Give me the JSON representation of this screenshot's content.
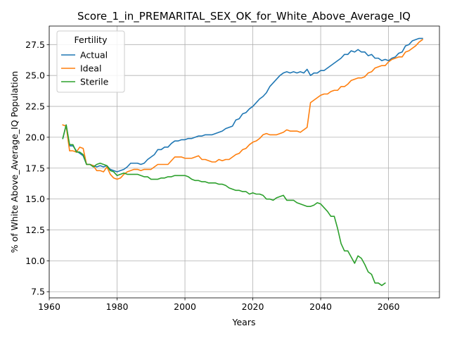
{
  "chart_data": {
    "type": "line",
    "title": "Score_1_in_PREMARITAL_SEX_OK_for_White_Above_Average_IQ",
    "xlabel": "Years",
    "ylabel": "% of White Above_Average_IQ Population",
    "xlim": [
      1960,
      2075
    ],
    "ylim": [
      7.0,
      29.0
    ],
    "xticks": [
      1960,
      1980,
      2000,
      2020,
      2040,
      2060
    ],
    "yticks": [
      7.5,
      10.0,
      12.5,
      15.0,
      17.5,
      20.0,
      22.5,
      25.0,
      27.5
    ],
    "grid": true,
    "legend": {
      "title": "Fertility",
      "position": "top-left"
    },
    "series": [
      {
        "name": "Actual",
        "color": "#1f77b4",
        "points": [
          [
            1964,
            19.9
          ],
          [
            1965,
            21.0
          ],
          [
            1966,
            19.3
          ],
          [
            1967,
            19.3
          ],
          [
            1968,
            18.9
          ],
          [
            1969,
            18.7
          ],
          [
            1970,
            18.5
          ],
          [
            1971,
            17.8
          ],
          [
            1972,
            17.8
          ],
          [
            1973,
            17.7
          ],
          [
            1974,
            17.6
          ],
          [
            1975,
            17.7
          ],
          [
            1976,
            17.6
          ],
          [
            1977,
            17.7
          ],
          [
            1978,
            17.4
          ],
          [
            1979,
            17.3
          ],
          [
            1980,
            17.2
          ],
          [
            1981,
            17.3
          ],
          [
            1982,
            17.4
          ],
          [
            1983,
            17.6
          ],
          [
            1984,
            17.9
          ],
          [
            1985,
            17.9
          ],
          [
            1986,
            17.9
          ],
          [
            1987,
            17.8
          ],
          [
            1988,
            17.9
          ],
          [
            1989,
            18.2
          ],
          [
            1990,
            18.4
          ],
          [
            1991,
            18.6
          ],
          [
            1992,
            19.0
          ],
          [
            1993,
            19.0
          ],
          [
            1994,
            19.2
          ],
          [
            1995,
            19.2
          ],
          [
            1996,
            19.5
          ],
          [
            1997,
            19.7
          ],
          [
            1998,
            19.7
          ],
          [
            1999,
            19.8
          ],
          [
            2000,
            19.8
          ],
          [
            2001,
            19.9
          ],
          [
            2002,
            19.9
          ],
          [
            2003,
            20.0
          ],
          [
            2004,
            20.1
          ],
          [
            2005,
            20.1
          ],
          [
            2006,
            20.2
          ],
          [
            2007,
            20.2
          ],
          [
            2008,
            20.2
          ],
          [
            2009,
            20.3
          ],
          [
            2010,
            20.4
          ],
          [
            2011,
            20.5
          ],
          [
            2012,
            20.7
          ],
          [
            2013,
            20.8
          ],
          [
            2014,
            20.9
          ],
          [
            2015,
            21.4
          ],
          [
            2016,
            21.5
          ],
          [
            2017,
            21.9
          ],
          [
            2018,
            22.0
          ],
          [
            2019,
            22.3
          ],
          [
            2020,
            22.5
          ],
          [
            2021,
            22.8
          ],
          [
            2022,
            23.1
          ],
          [
            2023,
            23.3
          ],
          [
            2024,
            23.6
          ],
          [
            2025,
            24.1
          ],
          [
            2026,
            24.4
          ],
          [
            2027,
            24.7
          ],
          [
            2028,
            25.0
          ],
          [
            2029,
            25.2
          ],
          [
            2030,
            25.3
          ],
          [
            2031,
            25.2
          ],
          [
            2032,
            25.3
          ],
          [
            2033,
            25.2
          ],
          [
            2034,
            25.3
          ],
          [
            2035,
            25.2
          ],
          [
            2036,
            25.5
          ],
          [
            2037,
            25.0
          ],
          [
            2038,
            25.2
          ],
          [
            2039,
            25.2
          ],
          [
            2040,
            25.4
          ],
          [
            2041,
            25.4
          ],
          [
            2042,
            25.6
          ],
          [
            2043,
            25.8
          ],
          [
            2044,
            26.0
          ],
          [
            2045,
            26.2
          ],
          [
            2046,
            26.4
          ],
          [
            2047,
            26.7
          ],
          [
            2048,
            26.7
          ],
          [
            2049,
            27.0
          ],
          [
            2050,
            26.9
          ],
          [
            2051,
            27.1
          ],
          [
            2052,
            26.9
          ],
          [
            2053,
            26.9
          ],
          [
            2054,
            26.6
          ],
          [
            2055,
            26.7
          ],
          [
            2056,
            26.4
          ],
          [
            2057,
            26.4
          ],
          [
            2058,
            26.2
          ],
          [
            2059,
            26.3
          ],
          [
            2060,
            26.2
          ],
          [
            2061,
            26.4
          ],
          [
            2062,
            26.5
          ],
          [
            2063,
            26.8
          ],
          [
            2064,
            26.9
          ],
          [
            2065,
            27.4
          ],
          [
            2066,
            27.5
          ],
          [
            2067,
            27.8
          ],
          [
            2068,
            27.9
          ],
          [
            2069,
            28.0
          ],
          [
            2070,
            28.0
          ]
        ]
      },
      {
        "name": "Ideal",
        "color": "#ff7f0e",
        "points": [
          [
            1964,
            21.0
          ],
          [
            1965,
            20.9
          ],
          [
            1966,
            18.9
          ],
          [
            1967,
            18.9
          ],
          [
            1968,
            18.8
          ],
          [
            1969,
            19.2
          ],
          [
            1970,
            19.1
          ],
          [
            1971,
            17.8
          ],
          [
            1972,
            17.8
          ],
          [
            1973,
            17.7
          ],
          [
            1974,
            17.3
          ],
          [
            1975,
            17.3
          ],
          [
            1976,
            17.2
          ],
          [
            1977,
            17.6
          ],
          [
            1978,
            17.0
          ],
          [
            1979,
            16.7
          ],
          [
            1980,
            16.6
          ],
          [
            1981,
            16.7
          ],
          [
            1982,
            17.0
          ],
          [
            1983,
            17.2
          ],
          [
            1984,
            17.3
          ],
          [
            1985,
            17.4
          ],
          [
            1986,
            17.4
          ],
          [
            1987,
            17.3
          ],
          [
            1988,
            17.4
          ],
          [
            1989,
            17.4
          ],
          [
            1990,
            17.4
          ],
          [
            1991,
            17.6
          ],
          [
            1992,
            17.8
          ],
          [
            1993,
            17.8
          ],
          [
            1994,
            17.8
          ],
          [
            1995,
            17.8
          ],
          [
            1996,
            18.1
          ],
          [
            1997,
            18.4
          ],
          [
            1998,
            18.4
          ],
          [
            1999,
            18.4
          ],
          [
            2000,
            18.3
          ],
          [
            2001,
            18.3
          ],
          [
            2002,
            18.3
          ],
          [
            2003,
            18.4
          ],
          [
            2004,
            18.5
          ],
          [
            2005,
            18.2
          ],
          [
            2006,
            18.2
          ],
          [
            2007,
            18.1
          ],
          [
            2008,
            18.0
          ],
          [
            2009,
            18.0
          ],
          [
            2010,
            18.2
          ],
          [
            2011,
            18.1
          ],
          [
            2012,
            18.2
          ],
          [
            2013,
            18.2
          ],
          [
            2014,
            18.4
          ],
          [
            2015,
            18.6
          ],
          [
            2016,
            18.7
          ],
          [
            2017,
            19.0
          ],
          [
            2018,
            19.1
          ],
          [
            2019,
            19.4
          ],
          [
            2020,
            19.6
          ],
          [
            2021,
            19.7
          ],
          [
            2022,
            19.9
          ],
          [
            2023,
            20.2
          ],
          [
            2024,
            20.3
          ],
          [
            2025,
            20.2
          ],
          [
            2026,
            20.2
          ],
          [
            2027,
            20.2
          ],
          [
            2028,
            20.3
          ],
          [
            2029,
            20.4
          ],
          [
            2030,
            20.6
          ],
          [
            2031,
            20.5
          ],
          [
            2032,
            20.5
          ],
          [
            2033,
            20.5
          ],
          [
            2034,
            20.4
          ],
          [
            2035,
            20.6
          ],
          [
            2036,
            20.8
          ],
          [
            2037,
            22.8
          ],
          [
            2038,
            23.0
          ],
          [
            2039,
            23.2
          ],
          [
            2040,
            23.4
          ],
          [
            2041,
            23.5
          ],
          [
            2042,
            23.5
          ],
          [
            2043,
            23.7
          ],
          [
            2044,
            23.8
          ],
          [
            2045,
            23.8
          ],
          [
            2046,
            24.1
          ],
          [
            2047,
            24.1
          ],
          [
            2048,
            24.3
          ],
          [
            2049,
            24.6
          ],
          [
            2050,
            24.7
          ],
          [
            2051,
            24.8
          ],
          [
            2052,
            24.8
          ],
          [
            2053,
            24.9
          ],
          [
            2054,
            25.2
          ],
          [
            2055,
            25.3
          ],
          [
            2056,
            25.6
          ],
          [
            2057,
            25.7
          ],
          [
            2058,
            25.8
          ],
          [
            2059,
            25.8
          ],
          [
            2060,
            26.1
          ],
          [
            2061,
            26.3
          ],
          [
            2062,
            26.4
          ],
          [
            2063,
            26.5
          ],
          [
            2064,
            26.5
          ],
          [
            2065,
            26.9
          ],
          [
            2066,
            27.0
          ],
          [
            2067,
            27.2
          ],
          [
            2068,
            27.4
          ],
          [
            2069,
            27.7
          ],
          [
            2070,
            27.9
          ]
        ]
      },
      {
        "name": "Sterile",
        "color": "#2ca02c",
        "points": [
          [
            1964,
            19.9
          ],
          [
            1965,
            21.0
          ],
          [
            1966,
            19.4
          ],
          [
            1967,
            19.4
          ],
          [
            1968,
            18.8
          ],
          [
            1969,
            18.8
          ],
          [
            1970,
            18.6
          ],
          [
            1971,
            17.8
          ],
          [
            1972,
            17.8
          ],
          [
            1973,
            17.6
          ],
          [
            1974,
            17.8
          ],
          [
            1975,
            17.9
          ],
          [
            1976,
            17.8
          ],
          [
            1977,
            17.7
          ],
          [
            1978,
            17.3
          ],
          [
            1979,
            17.2
          ],
          [
            1980,
            16.9
          ],
          [
            1981,
            17.0
          ],
          [
            1982,
            17.1
          ],
          [
            1983,
            17.0
          ],
          [
            1984,
            17.0
          ],
          [
            1985,
            17.0
          ],
          [
            1986,
            17.0
          ],
          [
            1987,
            16.9
          ],
          [
            1988,
            16.8
          ],
          [
            1989,
            16.8
          ],
          [
            1990,
            16.6
          ],
          [
            1991,
            16.6
          ],
          [
            1992,
            16.6
          ],
          [
            1993,
            16.7
          ],
          [
            1994,
            16.7
          ],
          [
            1995,
            16.8
          ],
          [
            1996,
            16.8
          ],
          [
            1997,
            16.9
          ],
          [
            1998,
            16.9
          ],
          [
            1999,
            16.9
          ],
          [
            2000,
            16.9
          ],
          [
            2001,
            16.8
          ],
          [
            2002,
            16.6
          ],
          [
            2003,
            16.5
          ],
          [
            2004,
            16.5
          ],
          [
            2005,
            16.4
          ],
          [
            2006,
            16.4
          ],
          [
            2007,
            16.3
          ],
          [
            2008,
            16.3
          ],
          [
            2009,
            16.3
          ],
          [
            2010,
            16.2
          ],
          [
            2011,
            16.2
          ],
          [
            2012,
            16.1
          ],
          [
            2013,
            15.9
          ],
          [
            2014,
            15.8
          ],
          [
            2015,
            15.7
          ],
          [
            2016,
            15.7
          ],
          [
            2017,
            15.6
          ],
          [
            2018,
            15.6
          ],
          [
            2019,
            15.4
          ],
          [
            2020,
            15.5
          ],
          [
            2021,
            15.4
          ],
          [
            2022,
            15.4
          ],
          [
            2023,
            15.3
          ],
          [
            2024,
            15.0
          ],
          [
            2025,
            15.0
          ],
          [
            2026,
            14.9
          ],
          [
            2027,
            15.1
          ],
          [
            2028,
            15.2
          ],
          [
            2029,
            15.3
          ],
          [
            2030,
            14.9
          ],
          [
            2031,
            14.9
          ],
          [
            2032,
            14.9
          ],
          [
            2033,
            14.7
          ],
          [
            2034,
            14.6
          ],
          [
            2035,
            14.5
          ],
          [
            2036,
            14.4
          ],
          [
            2037,
            14.4
          ],
          [
            2038,
            14.5
          ],
          [
            2039,
            14.7
          ],
          [
            2040,
            14.6
          ],
          [
            2041,
            14.3
          ],
          [
            2042,
            14.0
          ],
          [
            2043,
            13.6
          ],
          [
            2044,
            13.6
          ],
          [
            2045,
            12.6
          ],
          [
            2046,
            11.4
          ],
          [
            2047,
            10.8
          ],
          [
            2048,
            10.8
          ],
          [
            2049,
            10.3
          ],
          [
            2050,
            9.8
          ],
          [
            2051,
            10.4
          ],
          [
            2052,
            10.2
          ],
          [
            2053,
            9.7
          ],
          [
            2054,
            9.1
          ],
          [
            2055,
            8.9
          ],
          [
            2056,
            8.2
          ],
          [
            2057,
            8.2
          ],
          [
            2058,
            8.0
          ],
          [
            2059,
            8.2
          ]
        ]
      }
    ]
  }
}
